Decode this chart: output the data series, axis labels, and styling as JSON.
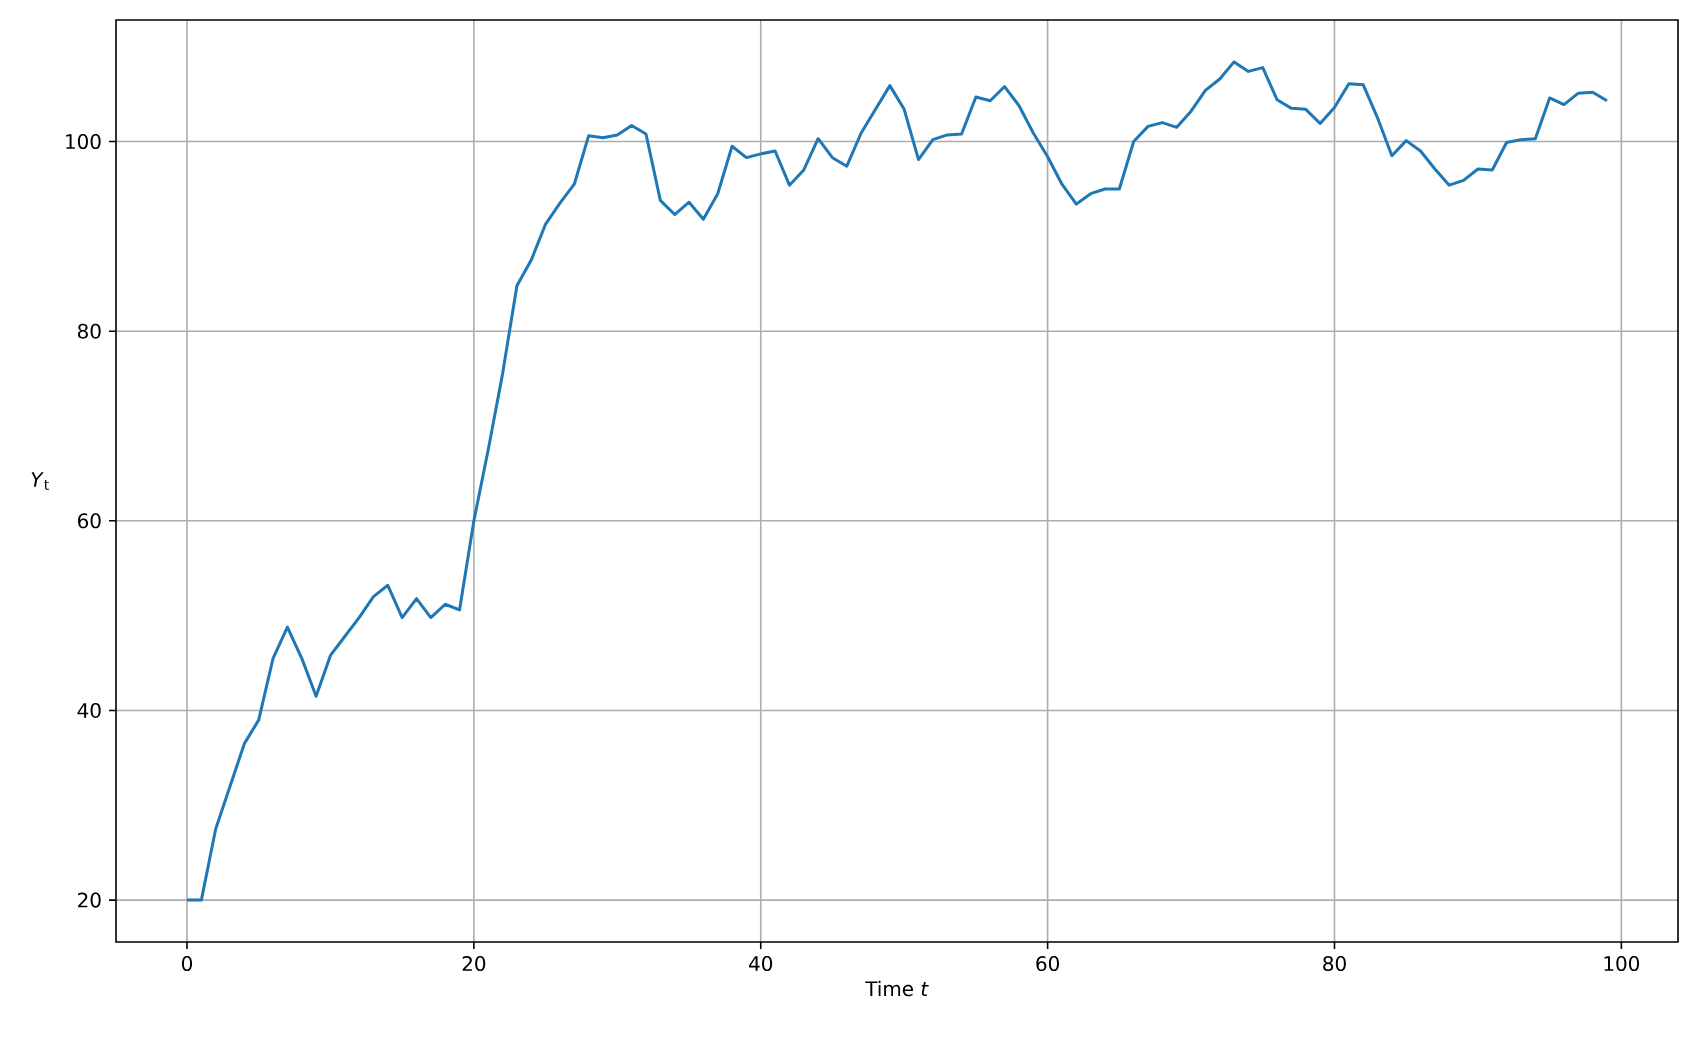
{
  "chart_data": {
    "type": "line",
    "xlabel": "Time *t*",
    "ylabel": "*Y*$_{t}$",
    "x": [
      0,
      1,
      2,
      3,
      4,
      5,
      6,
      7,
      8,
      9,
      10,
      11,
      12,
      13,
      14,
      15,
      16,
      17,
      18,
      19,
      20,
      21,
      22,
      23,
      24,
      25,
      26,
      27,
      28,
      29,
      30,
      31,
      32,
      33,
      34,
      35,
      36,
      37,
      38,
      39,
      40,
      41,
      42,
      43,
      44,
      45,
      46,
      47,
      48,
      49,
      50,
      51,
      52,
      53,
      54,
      55,
      56,
      57,
      58,
      59,
      60,
      61,
      62,
      63,
      64,
      65,
      66,
      67,
      68,
      69,
      70,
      71,
      72,
      73,
      74,
      75,
      76,
      77,
      78,
      79,
      80,
      81,
      82,
      83,
      84,
      85,
      86,
      87,
      88,
      89,
      90,
      91,
      92,
      93,
      94,
      95,
      96,
      97,
      98,
      99
    ],
    "series": [
      {
        "color": "#1f77b4",
        "values": [
          20,
          20,
          27.5,
          32,
          36.5,
          39,
          45.5,
          48.8,
          45.5,
          41.5,
          45.8,
          47.8,
          49.8,
          52,
          53.2,
          49.8,
          51.8,
          49.8,
          51.2,
          50.6,
          60,
          67.5,
          75.5,
          84.8,
          87.5,
          91.3,
          93.5,
          95.5,
          100.6,
          100.4,
          100.7,
          101.7,
          100.8,
          93.8,
          92.3,
          93.6,
          91.8,
          94.5,
          99.5,
          98.3,
          98.7,
          99,
          95.4,
          97,
          100.3,
          98.3,
          97.4,
          100.9,
          103.4,
          105.9,
          103.4,
          98.1,
          100.2,
          100.7,
          100.8,
          104.7,
          104.3,
          105.8,
          103.8,
          100.9,
          98.4,
          95.5,
          93.4,
          94.5,
          95,
          95,
          100,
          101.6,
          102,
          101.5,
          103.2,
          105.4,
          106.6,
          108.4,
          107.4,
          107.8,
          104.4,
          103.5,
          103.4,
          101.9,
          103.6,
          106.1,
          106,
          102.5,
          98.5,
          100.1,
          99,
          97.1,
          95.4,
          95.9,
          97.1,
          97,
          99.9,
          100.2,
          100.3,
          104.6,
          103.9,
          105.1,
          105.2,
          104.3
        ]
      }
    ],
    "xlim": [
      -4.95,
      103.95
    ],
    "ylim": [
      15.58,
      112.82
    ],
    "xticks": [
      0,
      20,
      40,
      60,
      80,
      100
    ],
    "yticks": [
      20,
      40,
      60,
      80,
      100
    ],
    "grid": true,
    "marker": "none",
    "line_style": "solid"
  }
}
